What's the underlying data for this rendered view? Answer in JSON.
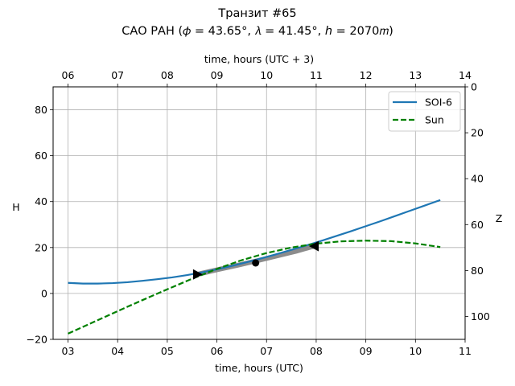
{
  "chart_data": {
    "type": "line",
    "title_line1": "Транзит #65",
    "title_line2": "САО РАН (𝜙 = 43.65°, 𝜆 = 41.45°, ℎ = 2070𝑚)",
    "xlabel_bottom": "time, hours (UTC)",
    "xlabel_top": "time, hours (UTC + 3)",
    "ylabel_left": "H",
    "ylabel_right": "Z",
    "xlim": [
      2.7,
      11.0
    ],
    "ylim": [
      -20,
      90
    ],
    "x_ticks_bottom": [
      {
        "value": 3,
        "label": "03"
      },
      {
        "value": 4,
        "label": "04"
      },
      {
        "value": 5,
        "label": "05"
      },
      {
        "value": 6,
        "label": "06"
      },
      {
        "value": 7,
        "label": "07"
      },
      {
        "value": 8,
        "label": "08"
      },
      {
        "value": 9,
        "label": "09"
      },
      {
        "value": 10,
        "label": "10"
      },
      {
        "value": 11,
        "label": "11"
      }
    ],
    "x_ticks_top": [
      {
        "value": 3,
        "label": "06"
      },
      {
        "value": 4,
        "label": "07"
      },
      {
        "value": 5,
        "label": "08"
      },
      {
        "value": 6,
        "label": "09"
      },
      {
        "value": 7,
        "label": "10"
      },
      {
        "value": 8,
        "label": "11"
      },
      {
        "value": 9,
        "label": "12"
      },
      {
        "value": 10,
        "label": "13"
      },
      {
        "value": 11,
        "label": "14"
      }
    ],
    "y_ticks_left": [
      {
        "value": -20,
        "label": "−20"
      },
      {
        "value": 0,
        "label": "0"
      },
      {
        "value": 20,
        "label": "20"
      },
      {
        "value": 40,
        "label": "40"
      },
      {
        "value": 60,
        "label": "60"
      },
      {
        "value": 80,
        "label": "80"
      }
    ],
    "y_ticks_right": [
      {
        "value": 90,
        "label": "0"
      },
      {
        "value": 70,
        "label": "20"
      },
      {
        "value": 50,
        "label": "40"
      },
      {
        "value": 30,
        "label": "60"
      },
      {
        "value": 10,
        "label": "80"
      },
      {
        "value": -10,
        "label": "100"
      }
    ],
    "grid": true,
    "legend_position": "top-right",
    "series": [
      {
        "name": "SOI-6",
        "color": "#1f77b4",
        "style": "solid",
        "x": [
          3.0,
          3.3,
          3.6,
          3.9,
          4.2,
          4.5,
          4.8,
          5.1,
          5.4,
          5.7,
          6.0,
          6.3,
          6.6,
          6.9,
          7.2,
          7.5,
          7.8,
          8.1,
          8.4,
          8.7,
          9.0,
          9.3,
          9.6,
          9.9,
          10.2,
          10.5
        ],
        "y": [
          4.6,
          4.3,
          4.3,
          4.5,
          4.9,
          5.5,
          6.2,
          7.0,
          8.0,
          9.2,
          10.5,
          12.0,
          13.6,
          15.3,
          17.1,
          19.0,
          20.9,
          22.9,
          25.0,
          27.1,
          29.3,
          31.5,
          33.8,
          36.1,
          38.4,
          40.7
        ]
      },
      {
        "name": "Sun",
        "color": "#008000",
        "style": "dashed",
        "x": [
          3.0,
          3.5,
          4.0,
          4.5,
          5.0,
          5.5,
          6.0,
          6.5,
          7.0,
          7.5,
          8.0,
          8.5,
          9.0,
          9.5,
          10.0,
          10.5
        ],
        "y": [
          -17.5,
          -12.6,
          -7.7,
          -2.9,
          1.8,
          6.4,
          10.7,
          14.5,
          17.6,
          20.0,
          21.7,
          22.7,
          23.0,
          22.8,
          21.8,
          20.2
        ]
      }
    ],
    "transit_band": {
      "name": "transit",
      "color": "#808080",
      "x": [
        5.6,
        6.0,
        6.4,
        6.8,
        7.2,
        7.6,
        8.0
      ],
      "y": [
        8.3,
        10.3,
        12.2,
        14.2,
        16.3,
        18.4,
        20.9
      ]
    },
    "markers": [
      {
        "name": "ingress",
        "shape": "triangle-right",
        "x": 5.6,
        "y": 8.3
      },
      {
        "name": "mid",
        "shape": "circle",
        "x": 6.78,
        "y": 13.3
      },
      {
        "name": "egress",
        "shape": "triangle-left",
        "x": 7.97,
        "y": 20.6
      }
    ]
  }
}
